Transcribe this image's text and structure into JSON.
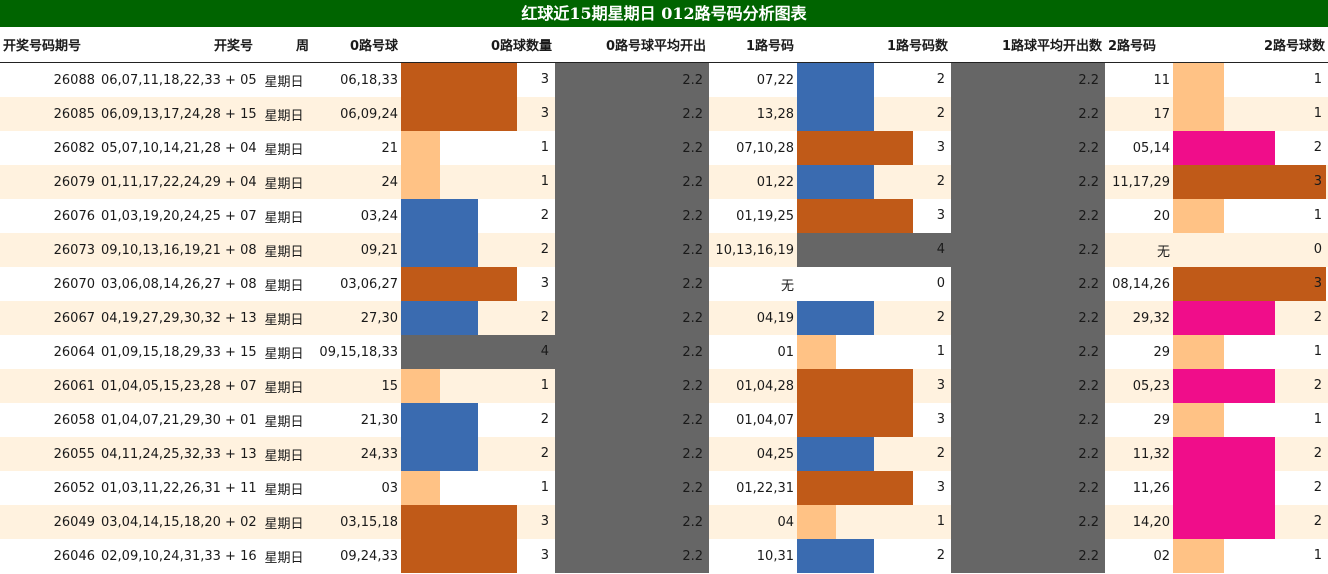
{
  "title": "红球近15期星期日 012路号码分析图表",
  "headers": [
    "开奖号码期号",
    "开奖号",
    "周",
    "0路号球",
    "0路球数量",
    "0路号球平均开出",
    "1路号码",
    "1路号码数",
    "1路球平均开出数",
    "2路号码",
    "2路号球数"
  ],
  "colors": {
    "title_bg": "#006400",
    "even_row_bg": "#fff2df",
    "avg_cell_bg": "#666666",
    "count_colors": {
      "0": "none",
      "1": "#ffc285",
      "2": "#3a6bb0",
      "3": "#c05a18",
      "4": "#666666"
    },
    "route2_count2_color": "#f00d8a"
  },
  "max_count": 4,
  "rows": [
    {
      "issue": "26088",
      "numbers": "06,07,11,18,22,33 + 05",
      "weekday": "星期日",
      "r0": "06,18,33",
      "r0_count": 3,
      "r0_avg": "2.2",
      "r1": "07,22",
      "r1_count": 2,
      "r1_avg": "2.2",
      "r2": "11",
      "r2_count": 1
    },
    {
      "issue": "26085",
      "numbers": "06,09,13,17,24,28 + 15",
      "weekday": "星期日",
      "r0": "06,09,24",
      "r0_count": 3,
      "r0_avg": "2.2",
      "r1": "13,28",
      "r1_count": 2,
      "r1_avg": "2.2",
      "r2": "17",
      "r2_count": 1
    },
    {
      "issue": "26082",
      "numbers": "05,07,10,14,21,28 + 04",
      "weekday": "星期日",
      "r0": "21",
      "r0_count": 1,
      "r0_avg": "2.2",
      "r1": "07,10,28",
      "r1_count": 3,
      "r1_avg": "2.2",
      "r2": "05,14",
      "r2_count": 2
    },
    {
      "issue": "26079",
      "numbers": "01,11,17,22,24,29 + 04",
      "weekday": "星期日",
      "r0": "24",
      "r0_count": 1,
      "r0_avg": "2.2",
      "r1": "01,22",
      "r1_count": 2,
      "r1_avg": "2.2",
      "r2": "11,17,29",
      "r2_count": 3
    },
    {
      "issue": "26076",
      "numbers": "01,03,19,20,24,25 + 07",
      "weekday": "星期日",
      "r0": "03,24",
      "r0_count": 2,
      "r0_avg": "2.2",
      "r1": "01,19,25",
      "r1_count": 3,
      "r1_avg": "2.2",
      "r2": "20",
      "r2_count": 1
    },
    {
      "issue": "26073",
      "numbers": "09,10,13,16,19,21 + 08",
      "weekday": "星期日",
      "r0": "09,21",
      "r0_count": 2,
      "r0_avg": "2.2",
      "r1": "10,13,16,19",
      "r1_count": 4,
      "r1_avg": "2.2",
      "r2": "无",
      "r2_count": 0
    },
    {
      "issue": "26070",
      "numbers": "03,06,08,14,26,27 + 08",
      "weekday": "星期日",
      "r0": "03,06,27",
      "r0_count": 3,
      "r0_avg": "2.2",
      "r1": "无",
      "r1_count": 0,
      "r1_avg": "2.2",
      "r2": "08,14,26",
      "r2_count": 3
    },
    {
      "issue": "26067",
      "numbers": "04,19,27,29,30,32 + 13",
      "weekday": "星期日",
      "r0": "27,30",
      "r0_count": 2,
      "r0_avg": "2.2",
      "r1": "04,19",
      "r1_count": 2,
      "r1_avg": "2.2",
      "r2": "29,32",
      "r2_count": 2
    },
    {
      "issue": "26064",
      "numbers": "01,09,15,18,29,33 + 15",
      "weekday": "星期日",
      "r0": "09,15,18,33",
      "r0_count": 4,
      "r0_avg": "2.2",
      "r1": "01",
      "r1_count": 1,
      "r1_avg": "2.2",
      "r2": "29",
      "r2_count": 1
    },
    {
      "issue": "26061",
      "numbers": "01,04,05,15,23,28 + 07",
      "weekday": "星期日",
      "r0": "15",
      "r0_count": 1,
      "r0_avg": "2.2",
      "r1": "01,04,28",
      "r1_count": 3,
      "r1_avg": "2.2",
      "r2": "05,23",
      "r2_count": 2
    },
    {
      "issue": "26058",
      "numbers": "01,04,07,21,29,30 + 01",
      "weekday": "星期日",
      "r0": "21,30",
      "r0_count": 2,
      "r0_avg": "2.2",
      "r1": "01,04,07",
      "r1_count": 3,
      "r1_avg": "2.2",
      "r2": "29",
      "r2_count": 1
    },
    {
      "issue": "26055",
      "numbers": "04,11,24,25,32,33 + 13",
      "weekday": "星期日",
      "r0": "24,33",
      "r0_count": 2,
      "r0_avg": "2.2",
      "r1": "04,25",
      "r1_count": 2,
      "r1_avg": "2.2",
      "r2": "11,32",
      "r2_count": 2
    },
    {
      "issue": "26052",
      "numbers": "01,03,11,22,26,31 + 11",
      "weekday": "星期日",
      "r0": "03",
      "r0_count": 1,
      "r0_avg": "2.2",
      "r1": "01,22,31",
      "r1_count": 3,
      "r1_avg": "2.2",
      "r2": "11,26",
      "r2_count": 2
    },
    {
      "issue": "26049",
      "numbers": "03,04,14,15,18,20 + 02",
      "weekday": "星期日",
      "r0": "03,15,18",
      "r0_count": 3,
      "r0_avg": "2.2",
      "r1": "04",
      "r1_count": 1,
      "r1_avg": "2.2",
      "r2": "14,20",
      "r2_count": 2
    },
    {
      "issue": "26046",
      "numbers": "02,09,10,24,31,33 + 16",
      "weekday": "星期日",
      "r0": "09,24,33",
      "r0_count": 3,
      "r0_avg": "2.2",
      "r1": "10,31",
      "r1_count": 2,
      "r1_avg": "2.2",
      "r2": "02",
      "r2_count": 1
    }
  ]
}
